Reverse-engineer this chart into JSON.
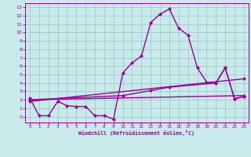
{
  "title": "",
  "xlabel": "Windchill (Refroidissement éolien,°C)",
  "ylabel": "",
  "background_color": "#c8eaea",
  "grid_color": "#a0cccc",
  "line_color": "#990099",
  "xlim": [
    -0.5,
    23.5
  ],
  "ylim": [
    -0.7,
    13.5
  ],
  "xticks": [
    0,
    1,
    2,
    3,
    4,
    5,
    6,
    7,
    8,
    9,
    10,
    11,
    12,
    13,
    14,
    15,
    16,
    17,
    18,
    19,
    20,
    21,
    22,
    23
  ],
  "yticks": [
    0,
    1,
    2,
    3,
    4,
    5,
    6,
    7,
    8,
    9,
    10,
    11,
    12,
    13
  ],
  "series": [
    {
      "x": [
        0,
        1,
        2,
        3,
        4,
        5,
        6,
        7,
        8,
        9,
        10,
        11,
        12,
        13,
        14,
        15,
        16,
        17,
        18,
        19,
        20,
        21,
        22,
        23
      ],
      "y": [
        2.2,
        0.1,
        0.1,
        1.8,
        1.3,
        1.2,
        1.2,
        0.1,
        0.1,
        -0.3,
        5.2,
        6.4,
        7.2,
        11.2,
        12.2,
        12.8,
        10.5,
        9.7,
        5.8,
        4.1,
        4.0,
        5.8,
        2.1,
        2.4
      ],
      "marker": "D",
      "markersize": 2.0,
      "linewidth": 1.0
    },
    {
      "x": [
        0,
        23
      ],
      "y": [
        2.0,
        2.5
      ],
      "marker": "D",
      "markersize": 2.0,
      "linewidth": 1.0
    },
    {
      "x": [
        0,
        23
      ],
      "y": [
        1.8,
        4.5
      ],
      "marker": "D",
      "markersize": 2.0,
      "linewidth": 1.0
    },
    {
      "x": [
        0,
        10,
        13,
        15,
        20,
        21,
        22,
        23
      ],
      "y": [
        2.0,
        2.5,
        3.1,
        3.5,
        4.0,
        5.8,
        2.1,
        2.4
      ],
      "marker": "D",
      "markersize": 2.0,
      "linewidth": 1.0
    }
  ]
}
